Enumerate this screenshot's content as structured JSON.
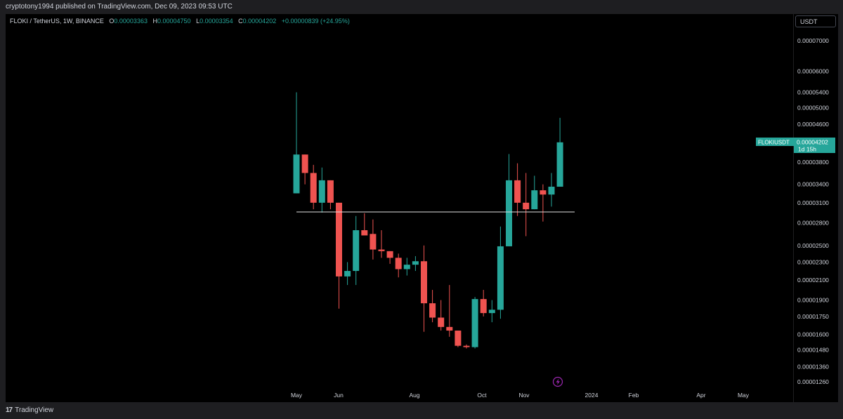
{
  "header": {
    "publish_line": "cryptotony1994 published on TradingView.com, Dec 09, 2023 09:53 UTC"
  },
  "legend": {
    "symbol": "FLOKI / TetherUS, 1W, BINANCE",
    "open_label": "O",
    "open": "0.00003363",
    "high_label": "H",
    "high": "0.00004750",
    "low_label": "L",
    "low": "0.00003354",
    "close_label": "C",
    "close": "0.00004202",
    "change": "+0.00000839 (+24.95%)"
  },
  "currency_button": "USDT",
  "price_tag": {
    "symbol": "FLOKIUSDT",
    "price": "0.00004202",
    "countdown": "1d 15h"
  },
  "footer": {
    "brand": "TradingView",
    "logo_icon": "tradingview-logo-icon"
  },
  "colors": {
    "up": "#26a69a",
    "down": "#ef5350",
    "background": "#000000",
    "level_line": "#e0e0e0"
  },
  "chart_data": {
    "type": "candlestick",
    "title": "FLOKI / TetherUS, 1W, BINANCE",
    "y_scale": "log",
    "ylim": [
      1.18e-05,
      7.8e-06
    ],
    "y_ticks": [
      "0.00007000",
      "0.00006000",
      "0.00005400",
      "0.00005000",
      "0.00004600",
      "0.00003800",
      "0.00003400",
      "0.00003100",
      "0.00002800",
      "0.00002500",
      "0.00002300",
      "0.00002100",
      "0.00001900",
      "0.00001750",
      "0.00001600",
      "0.00001480",
      "0.00001360",
      "0.00001260"
    ],
    "x_ticks": [
      "May",
      "Jun",
      "Aug",
      "Oct",
      "Nov",
      "2024",
      "Feb",
      "Apr",
      "May"
    ],
    "horizontal_level": 2.96e-05,
    "candles": [
      {
        "o": 3.25e-05,
        "h": 5.4e-05,
        "l": 3.25e-05,
        "c": 3.95e-05
      },
      {
        "o": 3.95e-05,
        "h": 3.95e-05,
        "l": 3.4e-05,
        "c": 3.6e-05
      },
      {
        "o": 3.6e-05,
        "h": 3.75e-05,
        "l": 3e-05,
        "c": 3.1e-05
      },
      {
        "o": 3.1e-05,
        "h": 3.7e-05,
        "l": 2.95e-05,
        "c": 3.47e-05
      },
      {
        "o": 3.47e-05,
        "h": 3.47e-05,
        "l": 3e-05,
        "c": 3.1e-05
      },
      {
        "o": 3.1e-05,
        "h": 3.1e-05,
        "l": 1.82e-05,
        "c": 2.14e-05
      },
      {
        "o": 2.14e-05,
        "h": 2.3e-05,
        "l": 2.05e-05,
        "c": 2.2e-05
      },
      {
        "o": 2.2e-05,
        "h": 2.9e-05,
        "l": 2.05e-05,
        "c": 2.7e-05
      },
      {
        "o": 2.7e-05,
        "h": 2.94e-05,
        "l": 2.65e-05,
        "c": 2.63e-05
      },
      {
        "o": 2.65e-05,
        "h": 2.85e-05,
        "l": 2.33e-05,
        "c": 2.45e-05
      },
      {
        "o": 2.45e-05,
        "h": 2.7e-05,
        "l": 2.35e-05,
        "c": 2.43e-05
      },
      {
        "o": 2.43e-05,
        "h": 2.43e-05,
        "l": 2.28e-05,
        "c": 2.35e-05
      },
      {
        "o": 2.35e-05,
        "h": 2.4e-05,
        "l": 2.13e-05,
        "c": 2.22e-05
      },
      {
        "o": 2.22e-05,
        "h": 2.35e-05,
        "l": 2.15e-05,
        "c": 2.27e-05
      },
      {
        "o": 2.27e-05,
        "h": 2.37e-05,
        "l": 2.2e-05,
        "c": 2.31e-05
      },
      {
        "o": 2.31e-05,
        "h": 2.5e-05,
        "l": 1.62e-05,
        "c": 1.87e-05
      },
      {
        "o": 1.87e-05,
        "h": 2e-05,
        "l": 1.7e-05,
        "c": 1.74e-05
      },
      {
        "o": 1.74e-05,
        "h": 1.9e-05,
        "l": 1.63e-05,
        "c": 1.66e-05
      },
      {
        "o": 1.66e-05,
        "h": 2.05e-05,
        "l": 1.58e-05,
        "c": 1.63e-05
      },
      {
        "o": 1.63e-05,
        "h": 1.63e-05,
        "l": 1.5e-05,
        "c": 1.51e-05
      },
      {
        "o": 1.51e-05,
        "h": 1.52e-05,
        "l": 1.49e-05,
        "c": 1.5e-05
      },
      {
        "o": 1.5e-05,
        "h": 1.93e-05,
        "l": 1.49e-05,
        "c": 1.91e-05
      },
      {
        "o": 1.91e-05,
        "h": 2e-05,
        "l": 1.75e-05,
        "c": 1.78e-05
      },
      {
        "o": 1.78e-05,
        "h": 1.9e-05,
        "l": 1.7e-05,
        "c": 1.81e-05
      },
      {
        "o": 1.81e-05,
        "h": 2.75e-05,
        "l": 1.73e-05,
        "c": 2.49e-05
      },
      {
        "o": 2.49e-05,
        "h": 3.96e-05,
        "l": 2.49e-05,
        "c": 3.47e-05
      },
      {
        "o": 3.47e-05,
        "h": 3.78e-05,
        "l": 2.9e-05,
        "c": 3.1e-05
      },
      {
        "o": 3.1e-05,
        "h": 3.6e-05,
        "l": 2.62e-05,
        "c": 3e-05
      },
      {
        "o": 3e-05,
        "h": 3.55e-05,
        "l": 3e-05,
        "c": 3.3e-05
      },
      {
        "o": 3.3e-05,
        "h": 3.4e-05,
        "l": 2.82e-05,
        "c": 3.23e-05
      },
      {
        "o": 3.23e-05,
        "h": 3.6e-05,
        "l": 3.04e-05,
        "c": 3.36e-05
      },
      {
        "o": 3.36e-05,
        "h": 4.75e-05,
        "l": 3.36e-05,
        "c": 4.2e-05
      }
    ]
  }
}
